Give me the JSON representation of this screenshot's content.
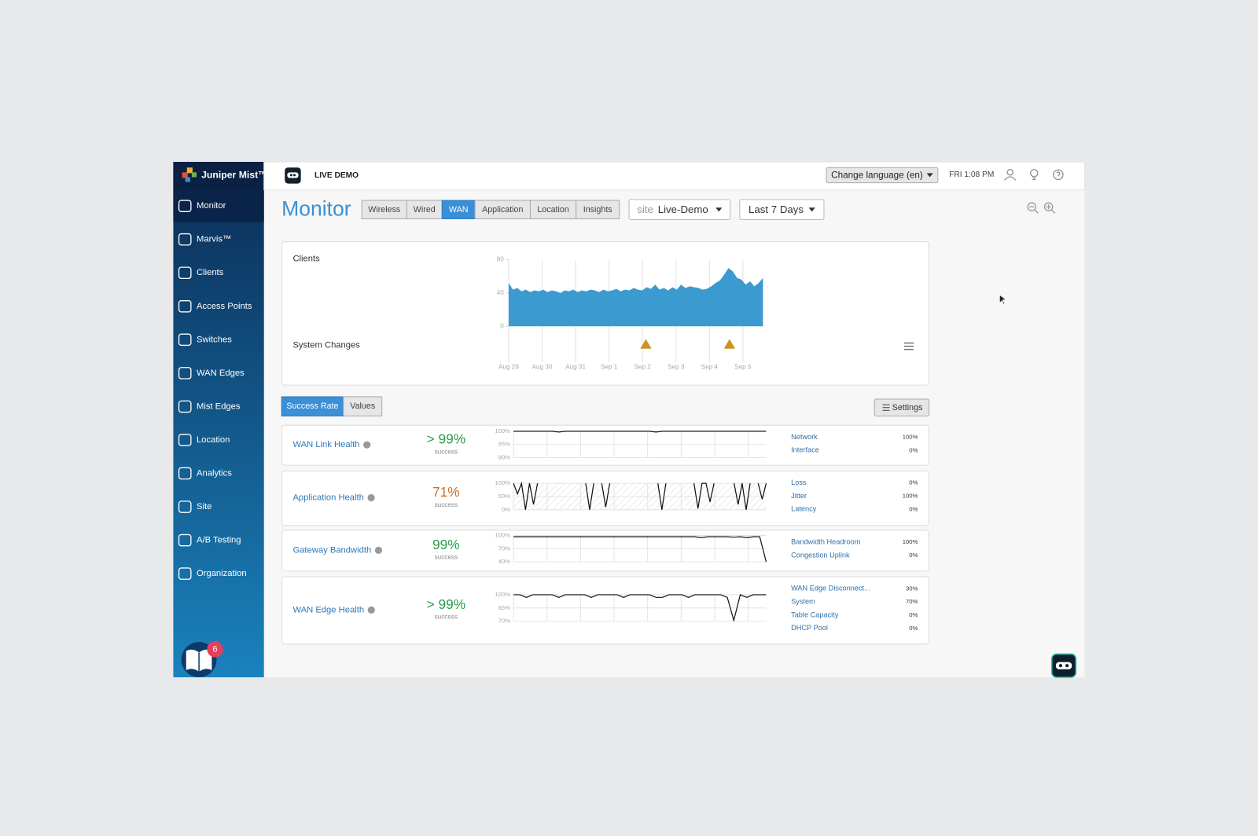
{
  "sidebar": {
    "brand": "Juniper Mist™",
    "active": 0,
    "items": [
      "Monitor",
      "Marvis™",
      "Clients",
      "Access Points",
      "Switches",
      "WAN Edges",
      "Mist Edges",
      "Location",
      "Analytics",
      "Site",
      "A/B Testing",
      "Organization"
    ],
    "badge": "6"
  },
  "topbar": {
    "org": "LIVE DEMO",
    "language": "Change language (en)",
    "time": "FRI 1:08 PM"
  },
  "header": {
    "title": "Monitor",
    "tabs": [
      "Wireless",
      "Wired",
      "WAN",
      "Application",
      "Location",
      "Insights"
    ],
    "active_tab": 2,
    "site_label": "site",
    "site": "Live-Demo",
    "range": "Last 7 Days"
  },
  "overview": {
    "clients_label": "Clients",
    "changes_label": "System Changes",
    "chart": {
      "type": "area",
      "color": "#3b9bd1",
      "ylim": [
        0,
        80
      ],
      "yticks": [
        0,
        40,
        80
      ],
      "xlim": [
        0,
        7.6
      ],
      "xticks": [
        {
          "value": 0,
          "label": "Aug 29"
        },
        {
          "value": 1,
          "label": "Aug 30"
        },
        {
          "value": 2,
          "label": "Aug 31"
        },
        {
          "value": 3,
          "label": "Sep 1"
        },
        {
          "value": 4,
          "label": "Sep 2"
        },
        {
          "value": 5,
          "label": "Sep 3"
        },
        {
          "value": 6,
          "label": "Sep 4"
        },
        {
          "value": 7,
          "label": "Sep 5"
        }
      ],
      "values": [
        52,
        44,
        46,
        42,
        44,
        41,
        43,
        42,
        44,
        41,
        43,
        42,
        40,
        43,
        42,
        44,
        41,
        43,
        42,
        44,
        43,
        41,
        44,
        42,
        43,
        45,
        42,
        44,
        43,
        46,
        44,
        43,
        47,
        45,
        50,
        44,
        46,
        43,
        47,
        44,
        50,
        46,
        48,
        47,
        46,
        44,
        45,
        48,
        52,
        55,
        62,
        70,
        66,
        58,
        56,
        50,
        54,
        48,
        52,
        58
      ],
      "changes": [
        4.1,
        6.6
      ],
      "change_color": "#c8961e"
    }
  },
  "controls": {
    "modes": [
      "Success Rate",
      "Values"
    ],
    "active_mode": 0,
    "settings": "Settings"
  },
  "health": [
    {
      "name": "WAN Link Health",
      "value": "> 99%",
      "sub": "success",
      "color": "#2a9d4a",
      "chart": {
        "type": "line",
        "ylim": [
          90,
          100
        ],
        "yticks": [
          {
            "value": 90,
            "label": "90%"
          },
          {
            "value": 95,
            "label": "95%"
          },
          {
            "value": 100,
            "label": "100%"
          }
        ],
        "values": [
          100,
          100,
          100,
          100,
          100,
          100,
          100,
          99.7,
          100,
          100,
          100,
          100,
          100,
          100,
          100,
          100,
          100,
          100,
          100,
          100,
          100,
          100,
          99.7,
          100,
          100,
          100,
          100,
          100,
          100,
          100,
          100,
          100,
          100,
          100,
          100,
          100,
          100,
          100,
          100,
          100
        ]
      },
      "metrics": [
        {
          "name": "Network",
          "value": "100%"
        },
        {
          "name": "Interface",
          "value": "0%"
        }
      ]
    },
    {
      "name": "Application Health",
      "value": "71%",
      "sub": "success",
      "color": "#c8702a",
      "hatched": true,
      "chart": {
        "type": "line",
        "ylim": [
          0,
          100
        ],
        "yticks": [
          {
            "value": 0,
            "label": "0%"
          },
          {
            "value": 50,
            "label": "50%"
          },
          {
            "value": 100,
            "label": "100%"
          }
        ],
        "values": [
          100,
          60,
          100,
          0,
          100,
          20,
          100,
          null,
          null,
          null,
          null,
          null,
          null,
          null,
          null,
          null,
          null,
          null,
          100,
          0,
          100,
          null,
          100,
          10,
          100,
          null,
          null,
          null,
          null,
          null,
          null,
          null,
          null,
          null,
          null,
          null,
          100,
          0,
          100,
          null,
          null,
          null,
          null,
          null,
          null,
          100,
          5,
          100,
          100,
          30,
          100,
          null,
          null,
          null,
          null,
          100,
          20,
          100,
          0,
          100,
          null,
          100,
          40,
          100
        ]
      },
      "metrics": [
        {
          "name": "Loss",
          "value": "0%"
        },
        {
          "name": "Jitter",
          "value": "100%"
        },
        {
          "name": "Latency",
          "value": "0%"
        }
      ]
    },
    {
      "name": "Gateway Bandwidth",
      "value": "99%",
      "sub": "success",
      "color": "#2a9d4a",
      "chart": {
        "type": "line",
        "ylim": [
          40,
          100
        ],
        "yticks": [
          {
            "value": 40,
            "label": "40%"
          },
          {
            "value": 70,
            "label": "70%"
          },
          {
            "value": 100,
            "label": "100%"
          }
        ],
        "values": [
          97,
          97,
          97,
          97,
          97,
          97,
          97,
          97,
          97,
          97,
          97,
          97,
          97,
          97,
          97,
          97,
          97,
          97,
          97,
          97,
          97,
          97,
          97,
          97,
          97,
          97,
          97,
          97,
          97,
          95,
          97,
          97,
          97,
          97,
          96,
          97,
          95,
          97,
          97,
          40
        ]
      },
      "metrics": [
        {
          "name": "Bandwidth Headroom",
          "value": "100%"
        },
        {
          "name": "Congestion Uplink",
          "value": "0%"
        }
      ]
    },
    {
      "name": "WAN Edge Health",
      "value": "> 99%",
      "sub": "success",
      "color": "#2a9d4a",
      "chart": {
        "type": "line",
        "ylim": [
          70,
          100
        ],
        "yticks": [
          {
            "value": 70,
            "label": "70%"
          },
          {
            "value": 85,
            "label": "85%"
          },
          {
            "value": 100,
            "label": "100%"
          }
        ],
        "values": [
          100,
          100,
          97,
          100,
          100,
          100,
          100,
          97,
          100,
          100,
          100,
          100,
          97,
          100,
          100,
          100,
          100,
          97,
          100,
          100,
          100,
          100,
          97,
          97,
          100,
          100,
          100,
          97,
          100,
          100,
          100,
          100,
          100,
          97,
          71,
          100,
          97,
          100,
          100,
          100
        ]
      },
      "metrics": [
        {
          "name": "WAN Edge Disconnect...",
          "value": "30%"
        },
        {
          "name": "System",
          "value": "70%"
        },
        {
          "name": "Table Capacity",
          "value": "0%"
        },
        {
          "name": "DHCP Pool",
          "value": "0%"
        }
      ]
    }
  ]
}
